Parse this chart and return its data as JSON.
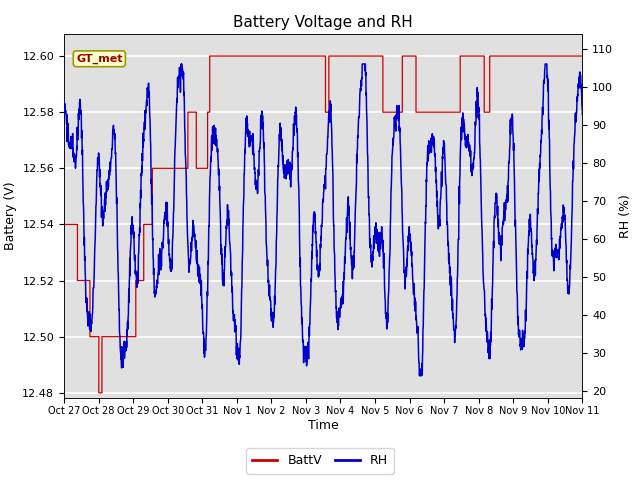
{
  "title": "Battery Voltage and RH",
  "xlabel": "Time",
  "ylabel_left": "Battery (V)",
  "ylabel_right": "RH (%)",
  "ylim_left": [
    12.478,
    12.608
  ],
  "ylim_right": [
    18,
    114
  ],
  "yticks_left": [
    12.48,
    12.5,
    12.52,
    12.54,
    12.56,
    12.58,
    12.6
  ],
  "yticks_right": [
    20,
    30,
    40,
    50,
    60,
    70,
    80,
    90,
    100,
    110
  ],
  "x_tick_labels": [
    "Oct 27",
    "Oct 28",
    "Oct 29",
    "Oct 30",
    "Oct 31",
    "Nov 1",
    "Nov 2",
    "Nov 3",
    "Nov 4",
    "Nov 5",
    "Nov 6",
    "Nov 7",
    "Nov 8",
    "Nov 9",
    "Nov 10",
    "Nov 11"
  ],
  "annotation_text": "GT_met",
  "batt_color": "#cc0000",
  "rh_color": "#0000cc",
  "legend_labels": [
    "BattV",
    "RH"
  ],
  "plot_bg_color": "#e0e0e0",
  "grid_color": "#ffffff",
  "title_fontsize": 11,
  "axis_fontsize": 9,
  "tick_fontsize": 8,
  "ann_fontsize": 8
}
